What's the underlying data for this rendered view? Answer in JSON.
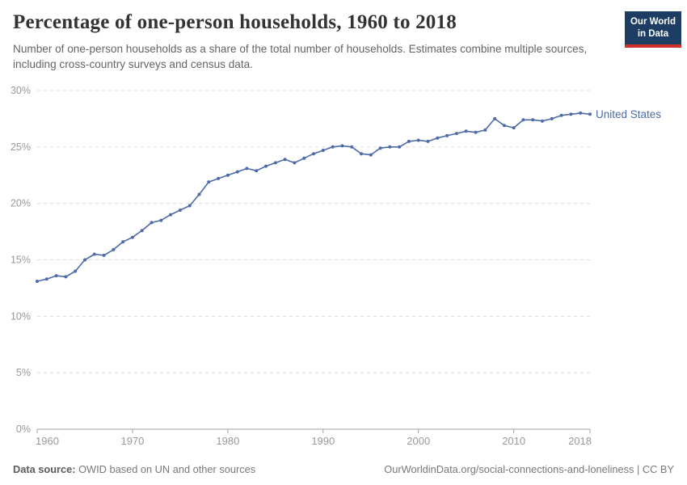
{
  "header": {
    "title": "Percentage of one-person households, 1960 to 2018",
    "subtitle": "Number of one-person households as a share of the total number of households. Estimates combine multiple sources, including cross-country surveys and census data.",
    "logo": {
      "line1": "Our World",
      "line2": "in Data",
      "bg_color": "#1d3d63",
      "stripe_color": "#cf3129"
    }
  },
  "footer": {
    "source_label": "Data source:",
    "source_text": " OWID based on UN and other sources",
    "link_text": "OurWorldinData.org/social-connections-and-loneliness | CC BY"
  },
  "chart_data": {
    "type": "line",
    "title": "Percentage of one-person households, 1960 to 2018",
    "xlabel": "",
    "ylabel": "",
    "ylim": [
      0,
      30
    ],
    "yticks": [
      0,
      5,
      10,
      15,
      20,
      25,
      30
    ],
    "ytick_labels": [
      "0%",
      "5%",
      "10%",
      "15%",
      "20%",
      "25%",
      "30%"
    ],
    "xticks": [
      1960,
      1970,
      1980,
      1990,
      2000,
      2010,
      2018
    ],
    "xtick_labels": [
      "1960",
      "1970",
      "1980",
      "1990",
      "2000",
      "2010",
      "2018"
    ],
    "grid": "horizontal-dashed",
    "legend_position": "right-of-line-end",
    "series": [
      {
        "name": "United States",
        "x": [
          1960,
          1961,
          1962,
          1963,
          1964,
          1965,
          1966,
          1967,
          1968,
          1969,
          1970,
          1971,
          1972,
          1973,
          1974,
          1975,
          1976,
          1977,
          1978,
          1979,
          1980,
          1981,
          1982,
          1983,
          1984,
          1985,
          1986,
          1987,
          1988,
          1989,
          1990,
          1991,
          1992,
          1993,
          1994,
          1995,
          1996,
          1997,
          1998,
          1999,
          2000,
          2001,
          2002,
          2003,
          2004,
          2005,
          2006,
          2007,
          2008,
          2009,
          2010,
          2011,
          2012,
          2013,
          2014,
          2015,
          2016,
          2017,
          2018
        ],
        "values": [
          13.1,
          13.3,
          13.6,
          13.5,
          14.0,
          15.0,
          15.5,
          15.4,
          15.9,
          16.6,
          17.0,
          17.6,
          18.3,
          18.5,
          19.0,
          19.4,
          19.8,
          20.8,
          21.9,
          22.2,
          22.5,
          22.8,
          23.1,
          22.9,
          23.3,
          23.6,
          23.9,
          23.6,
          24.0,
          24.4,
          24.7,
          25.0,
          25.1,
          25.0,
          24.4,
          24.3,
          24.9,
          25.0,
          25.0,
          25.5,
          25.6,
          25.5,
          25.8,
          26.0,
          26.2,
          26.4,
          26.3,
          26.5,
          27.5,
          26.9,
          26.7,
          27.4,
          27.4,
          27.3,
          27.5,
          27.8,
          27.9,
          28.0,
          27.9
        ]
      }
    ],
    "colors": {
      "line": "#4e6ba8",
      "axis_text": "#999999",
      "gridline": "#dddddd",
      "axis_line": "#a3a3a3"
    }
  }
}
